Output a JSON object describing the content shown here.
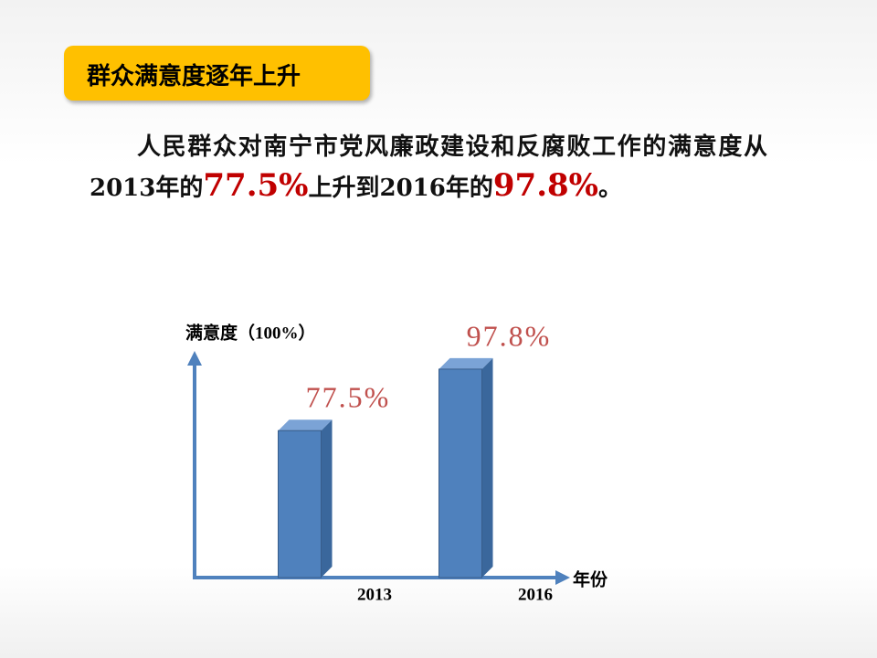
{
  "header": {
    "title": "群众满意度逐年上升"
  },
  "paragraph": {
    "segments": [
      "人民群众对南宁市党风廉政建设和反腐败工作的满意度从2013年的",
      "77.5%",
      "上升到2016年的",
      "97.8%",
      "。"
    ]
  },
  "chart_data": {
    "type": "bar",
    "y_label": "满意度（100%）",
    "x_label": "年份",
    "categories": [
      "2013",
      "2016"
    ],
    "values": [
      77.5,
      97.8
    ],
    "value_labels": [
      "77.5%",
      "97.8%"
    ],
    "color": "#4f81bd",
    "ylim": [
      29,
      102
    ]
  }
}
